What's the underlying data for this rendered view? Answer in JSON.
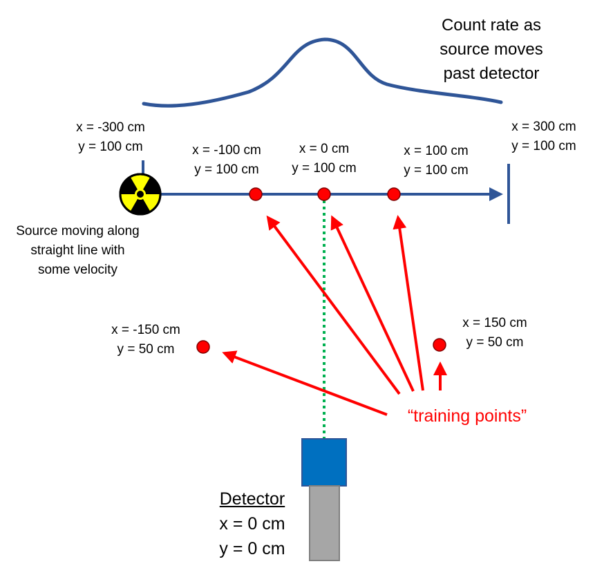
{
  "curve_title": [
    "Count rate as",
    "source moves",
    "past detector"
  ],
  "track_start_label": [
    "x = -300 cm",
    "y = 100 cm"
  ],
  "track_end_label": [
    "x = 300 cm",
    "y = 100 cm"
  ],
  "source_label": [
    "Source moving along",
    "straight line with",
    "some velocity"
  ],
  "points": [
    {
      "id": "p-neg100",
      "label": [
        "x = -100 cm",
        "y = 100 cm"
      ]
    },
    {
      "id": "p-0",
      "label": [
        "x = 0 cm",
        "y = 100 cm"
      ]
    },
    {
      "id": "p-100",
      "label": [
        "x = 100 cm",
        "y = 100 cm"
      ]
    },
    {
      "id": "p-neg150",
      "label": [
        "x = -150 cm",
        "y = 50 cm"
      ]
    },
    {
      "id": "p-150",
      "label": [
        "x = 150 cm",
        "y = 50 cm"
      ]
    }
  ],
  "training_label": "“training points”",
  "detector": {
    "name": "Detector",
    "x": "x = 0 cm",
    "y": "y = 0 cm"
  },
  "colors": {
    "track": "#2f5597",
    "point": "#ff0000",
    "arrow": "#ff0000",
    "sightline": "#00b050",
    "detector_head": "#0070c0",
    "detector_body": "#a6a6a6",
    "radiation_fill": "#ffff00"
  },
  "icons": {
    "source": "radiation-trefoil-icon"
  }
}
